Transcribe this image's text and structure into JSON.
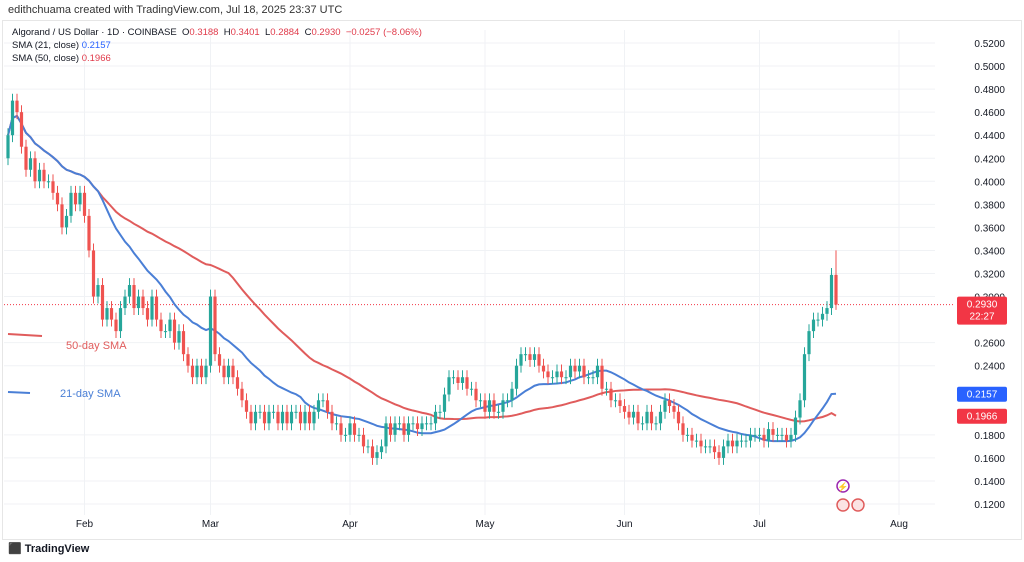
{
  "credit": "edithchuama created with TradingView.com, Jul 18, 2025 23:37 UTC",
  "legend": {
    "symbol": "Algorand / US Dollar · 1D · COINBASE",
    "o_label": "O",
    "o": "0.3188",
    "h_label": "H",
    "h": "0.3401",
    "l_label": "L",
    "l": "0.2884",
    "c_label": "C",
    "c": "0.2930",
    "change": "−0.0257 (−8.06%)",
    "sma21_label": "SMA (21, close)",
    "sma21": "0.2157",
    "sma50_label": "SMA (50, close)",
    "sma50": "0.1966"
  },
  "annotations": {
    "sma50": "50-day SMA",
    "sma21": "21-day SMA"
  },
  "price_tag": {
    "value": "0.2930",
    "countdown": "22:27"
  },
  "logo": "TradingView",
  "colors": {
    "up": "#26a69a",
    "down": "#ef5350",
    "sma21": "#4a7fd6",
    "sma50": "#e05c5c",
    "tag_red": "#f23645",
    "tag_blue": "#2962ff"
  },
  "chart_data": {
    "type": "candlestick",
    "title": "Algorand / US Dollar · 1D · COINBASE",
    "start_date": "2025-01-15",
    "ylim": [
      0.11,
      0.53
    ],
    "y_ticks": [
      "0.5200",
      "0.5000",
      "0.4800",
      "0.4600",
      "0.4400",
      "0.4200",
      "0.4000",
      "0.3800",
      "0.3600",
      "0.3400",
      "0.3200",
      "0.3000",
      "0.2600",
      "0.2400",
      "0.1800",
      "0.1600",
      "0.1400",
      "0.1200"
    ],
    "x_ticks": [
      {
        "label": "Feb",
        "day": 17
      },
      {
        "label": "Mar",
        "day": 45
      },
      {
        "label": "Apr",
        "day": 76
      },
      {
        "label": "May",
        "day": 106
      },
      {
        "label": "Jun",
        "day": 137
      },
      {
        "label": "Jul",
        "day": 167
      },
      {
        "label": "Aug",
        "day": 198
      }
    ],
    "closes": [
      0.44,
      0.47,
      0.46,
      0.43,
      0.41,
      0.42,
      0.4,
      0.41,
      0.4,
      0.4,
      0.39,
      0.38,
      0.36,
      0.37,
      0.39,
      0.38,
      0.39,
      0.37,
      0.34,
      0.3,
      0.31,
      0.28,
      0.29,
      0.28,
      0.27,
      0.29,
      0.3,
      0.31,
      0.29,
      0.3,
      0.29,
      0.28,
      0.3,
      0.28,
      0.27,
      0.27,
      0.28,
      0.26,
      0.27,
      0.25,
      0.24,
      0.23,
      0.24,
      0.23,
      0.24,
      0.3,
      0.25,
      0.24,
      0.23,
      0.24,
      0.23,
      0.22,
      0.21,
      0.2,
      0.19,
      0.2,
      0.2,
      0.19,
      0.2,
      0.2,
      0.19,
      0.2,
      0.19,
      0.2,
      0.2,
      0.19,
      0.2,
      0.19,
      0.2,
      0.21,
      0.21,
      0.2,
      0.19,
      0.19,
      0.18,
      0.18,
      0.19,
      0.18,
      0.18,
      0.17,
      0.17,
      0.16,
      0.165,
      0.17,
      0.19,
      0.18,
      0.19,
      0.19,
      0.18,
      0.19,
      0.19,
      0.185,
      0.19,
      0.19,
      0.19,
      0.2,
      0.2,
      0.215,
      0.23,
      0.23,
      0.225,
      0.23,
      0.22,
      0.22,
      0.21,
      0.21,
      0.2,
      0.21,
      0.2,
      0.2,
      0.21,
      0.21,
      0.22,
      0.24,
      0.25,
      0.25,
      0.245,
      0.25,
      0.24,
      0.235,
      0.23,
      0.23,
      0.235,
      0.23,
      0.23,
      0.24,
      0.235,
      0.24,
      0.23,
      0.23,
      0.23,
      0.24,
      0.22,
      0.22,
      0.21,
      0.21,
      0.205,
      0.2,
      0.195,
      0.2,
      0.19,
      0.19,
      0.2,
      0.19,
      0.19,
      0.2,
      0.21,
      0.205,
      0.2,
      0.19,
      0.18,
      0.18,
      0.175,
      0.175,
      0.17,
      0.17,
      0.17,
      0.165,
      0.16,
      0.17,
      0.175,
      0.17,
      0.175,
      0.175,
      0.175,
      0.18,
      0.18,
      0.18,
      0.175,
      0.185,
      0.18,
      0.18,
      0.18,
      0.175,
      0.18,
      0.195,
      0.21,
      0.25,
      0.27,
      0.28,
      0.28,
      0.285,
      0.29,
      0.3188,
      0.293
    ],
    "last_candle": {
      "open": 0.3188,
      "high": 0.3401,
      "low": 0.2884,
      "close": 0.293
    },
    "first_open": 0.42,
    "sma_periods": [
      21,
      50
    ],
    "sma_last": {
      "sma21": 0.2157,
      "sma50": 0.1966
    },
    "current_price": 0.293
  }
}
